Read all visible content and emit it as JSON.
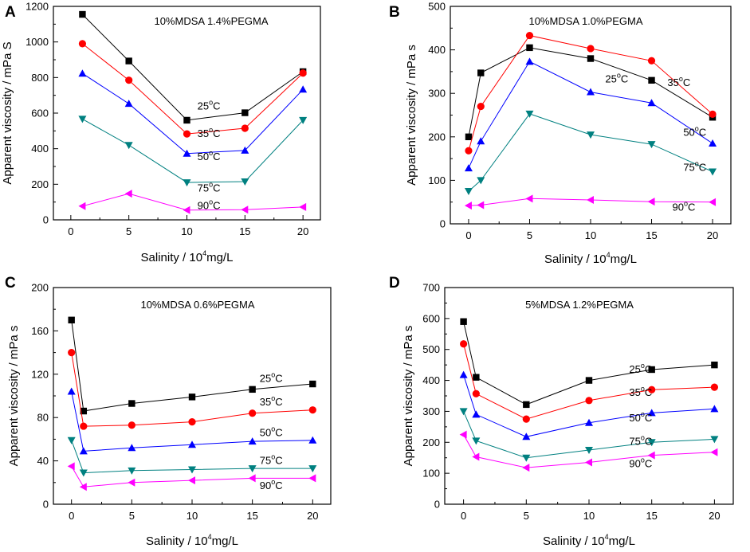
{
  "chart_data": [
    {
      "type": "line",
      "panel_letter": "A",
      "title": "10%MDSA 1.4%PEGMA",
      "xlabel": "Salinity / 10",
      "xlabel_exp": "4",
      "xlabel_unit": "mg/L",
      "ylabel": "Apparent viscosity / mPa S",
      "xlim": [
        -1.5,
        21.5
      ],
      "ylim": [
        0,
        1200
      ],
      "xticks": [
        0,
        5,
        10,
        15,
        20
      ],
      "yticks": [
        0,
        200,
        400,
        600,
        800,
        1000,
        1200
      ],
      "x": [
        1,
        5,
        10,
        15,
        20
      ],
      "series": [
        {
          "name": "25",
          "unit": "C",
          "color": "#000000",
          "marker": "square",
          "values": [
            1155,
            893,
            560,
            602,
            833
          ],
          "label_at": [
            10.9,
            620
          ]
        },
        {
          "name": "35",
          "unit": "C",
          "color": "#ff0000",
          "marker": "circle",
          "values": [
            990,
            785,
            483,
            515,
            825
          ],
          "label_at": [
            10.9,
            465
          ]
        },
        {
          "name": "50",
          "unit": "C",
          "color": "#0000ff",
          "marker": "triangle-up",
          "values": [
            823,
            653,
            373,
            390,
            733
          ],
          "label_at": [
            10.9,
            335
          ]
        },
        {
          "name": "75",
          "unit": "C",
          "color": "#008080",
          "marker": "triangle-down",
          "values": [
            567,
            420,
            210,
            215,
            560
          ],
          "label_at": [
            10.9,
            160
          ]
        },
        {
          "name": "90",
          "unit": "C",
          "color": "#ff00ff",
          "marker": "triangle-left",
          "values": [
            77,
            147,
            55,
            57,
            72
          ],
          "label_at": [
            10.9,
            60
          ]
        }
      ]
    },
    {
      "type": "line",
      "panel_letter": "B",
      "title": "10%MDSA 1.0%PEGMA",
      "xlabel": "Salinity / 10",
      "xlabel_exp": "4",
      "xlabel_unit": "mg/L",
      "ylabel": "Apparent viscosity / mPa s",
      "xlim": [
        -1.5,
        21.5
      ],
      "ylim": [
        0,
        500
      ],
      "xticks": [
        0,
        5,
        10,
        15,
        20
      ],
      "yticks": [
        0,
        100,
        200,
        300,
        400,
        500
      ],
      "x": [
        0,
        1,
        5,
        10,
        15,
        20
      ],
      "series": [
        {
          "name": "25",
          "unit": "C",
          "color": "#000000",
          "marker": "square",
          "values": [
            200,
            347,
            405,
            380,
            330,
            245
          ],
          "label_at": [
            11.2,
            325
          ]
        },
        {
          "name": "35",
          "unit": "C",
          "color": "#ff0000",
          "marker": "circle",
          "values": [
            168,
            270,
            433,
            403,
            375,
            252
          ],
          "label_at": [
            16.3,
            317
          ]
        },
        {
          "name": "50",
          "unit": "C",
          "color": "#0000ff",
          "marker": "triangle-up",
          "values": [
            128,
            190,
            373,
            303,
            278,
            185
          ],
          "label_at": [
            17.6,
            202
          ]
        },
        {
          "name": "75",
          "unit": "C",
          "color": "#008080",
          "marker": "triangle-down",
          "values": [
            75,
            100,
            253,
            205,
            183,
            120
          ],
          "label_at": [
            17.6,
            122
          ]
        },
        {
          "name": "90",
          "unit": "C",
          "color": "#ff00ff",
          "marker": "triangle-left",
          "values": [
            42,
            43,
            58,
            55,
            51,
            50
          ],
          "label_at": [
            16.7,
            30
          ]
        }
      ]
    },
    {
      "type": "line",
      "panel_letter": "C",
      "title": "10%MDSA 0.6%PEGMA",
      "xlabel": "Salinity / 10",
      "xlabel_exp": "4",
      "xlabel_unit": "mg/L",
      "ylabel": "Apparent viscosity / mPa s",
      "xlim": [
        -1.5,
        21.5
      ],
      "ylim": [
        0,
        200
      ],
      "xticks": [
        0,
        5,
        10,
        15,
        20
      ],
      "yticks": [
        0,
        40,
        80,
        120,
        160,
        200
      ],
      "x": [
        0,
        1,
        5,
        10,
        15,
        20
      ],
      "series": [
        {
          "name": "25",
          "unit": "C",
          "color": "#000000",
          "marker": "square",
          "values": [
            170,
            86,
            93,
            99,
            106,
            111
          ],
          "label_at": [
            15.6,
            113
          ]
        },
        {
          "name": "35",
          "unit": "C",
          "color": "#ff0000",
          "marker": "circle",
          "values": [
            140,
            72,
            73,
            76,
            84,
            87
          ],
          "label_at": [
            15.6,
            91
          ]
        },
        {
          "name": "50",
          "unit": "C",
          "color": "#0000ff",
          "marker": "triangle-up",
          "values": [
            104,
            49,
            52,
            55,
            58,
            59
          ],
          "label_at": [
            15.6,
            63
          ]
        },
        {
          "name": "75",
          "unit": "C",
          "color": "#008080",
          "marker": "triangle-down",
          "values": [
            59,
            29,
            31,
            32,
            33,
            33
          ],
          "label_at": [
            15.6,
            37
          ]
        },
        {
          "name": "90",
          "unit": "C",
          "color": "#ff00ff",
          "marker": "triangle-left",
          "values": [
            35,
            16,
            20,
            22,
            24,
            24
          ],
          "label_at": [
            15.6,
            14
          ]
        }
      ]
    },
    {
      "type": "line",
      "panel_letter": "D",
      "title": "5%MDSA 1.2%PEGMA",
      "xlabel": "Salinity / 10",
      "xlabel_exp": "4",
      "xlabel_unit": "mg/L",
      "ylabel": "Apparent viscosity / mPa s",
      "xlim": [
        -1.5,
        21.5
      ],
      "ylim": [
        0,
        700
      ],
      "xticks": [
        0,
        5,
        10,
        15,
        20
      ],
      "yticks": [
        0,
        100,
        200,
        300,
        400,
        500,
        600,
        700
      ],
      "x": [
        0,
        1,
        5,
        10,
        15,
        20
      ],
      "series": [
        {
          "name": "25",
          "unit": "C",
          "color": "#000000",
          "marker": "square",
          "values": [
            590,
            410,
            322,
            400,
            435,
            450
          ],
          "label_at": [
            13.2,
            425
          ]
        },
        {
          "name": "35",
          "unit": "C",
          "color": "#ff0000",
          "marker": "circle",
          "values": [
            518,
            357,
            275,
            335,
            370,
            378
          ],
          "label_at": [
            13.2,
            350
          ]
        },
        {
          "name": "50",
          "unit": "C",
          "color": "#0000ff",
          "marker": "triangle-up",
          "values": [
            418,
            290,
            218,
            263,
            295,
            308
          ],
          "label_at": [
            13.2,
            268
          ]
        },
        {
          "name": "75",
          "unit": "C",
          "color": "#008080",
          "marker": "triangle-down",
          "values": [
            300,
            205,
            150,
            175,
            200,
            210
          ],
          "label_at": [
            13.2,
            192
          ]
        },
        {
          "name": "90",
          "unit": "C",
          "color": "#ff00ff",
          "marker": "triangle-left",
          "values": [
            225,
            153,
            118,
            135,
            158,
            168
          ],
          "label_at": [
            13.2,
            120
          ]
        }
      ]
    }
  ]
}
